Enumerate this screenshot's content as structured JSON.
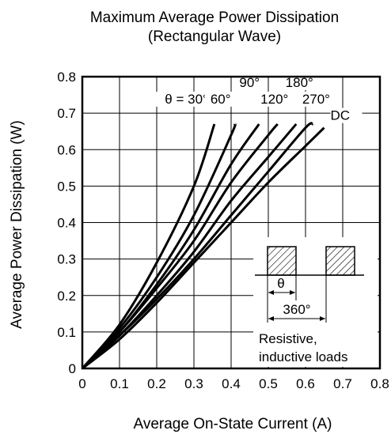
{
  "chart_data": {
    "type": "line",
    "title": "Maximum Average Power Dissipation",
    "subtitle": "(Rectangular Wave)",
    "xlabel": "Average On-State Current  (A)",
    "ylabel": "Average Power Dissipation  (W)",
    "xlim": [
      0,
      0.8
    ],
    "ylim": [
      0,
      0.8
    ],
    "grid": true,
    "xticks": [
      "0",
      "0.1",
      "0.2",
      "0.3",
      "0.4",
      "0.5",
      "0.6",
      "0.7",
      "0.8"
    ],
    "yticks": [
      "0",
      "0.1",
      "0.2",
      "0.3",
      "0.4",
      "0.5",
      "0.6",
      "0.7",
      "0.8"
    ],
    "series": [
      {
        "name": "θ = 30°",
        "x": [
          0,
          0.1,
          0.2,
          0.3,
          0.355
        ],
        "y": [
          0,
          0.12,
          0.29,
          0.5,
          0.67
        ]
      },
      {
        "name": "60°",
        "x": [
          0,
          0.1,
          0.2,
          0.3,
          0.4,
          0.41
        ],
        "y": [
          0,
          0.11,
          0.25,
          0.42,
          0.64,
          0.67
        ]
      },
      {
        "name": "90°",
        "x": [
          0,
          0.1,
          0.2,
          0.3,
          0.4,
          0.475
        ],
        "y": [
          0,
          0.1,
          0.23,
          0.38,
          0.56,
          0.67
        ]
      },
      {
        "name": "120°",
        "x": [
          0,
          0.1,
          0.2,
          0.3,
          0.4,
          0.5,
          0.525
        ],
        "y": [
          0,
          0.1,
          0.22,
          0.35,
          0.51,
          0.64,
          0.67
        ]
      },
      {
        "name": "180°",
        "x": [
          0,
          0.1,
          0.2,
          0.3,
          0.4,
          0.5,
          0.575
        ],
        "y": [
          0,
          0.09,
          0.2,
          0.32,
          0.46,
          0.58,
          0.67
        ]
      },
      {
        "name": "270°",
        "x": [
          0,
          0.1,
          0.2,
          0.3,
          0.4,
          0.5,
          0.6,
          0.62
        ],
        "y": [
          0,
          0.09,
          0.19,
          0.3,
          0.42,
          0.54,
          0.66,
          0.67
        ]
      },
      {
        "name": "DC",
        "x": [
          0,
          0.1,
          0.2,
          0.3,
          0.4,
          0.5,
          0.6,
          0.65
        ],
        "y": [
          0,
          0.08,
          0.18,
          0.29,
          0.4,
          0.51,
          0.61,
          0.66
        ]
      }
    ],
    "inset": {
      "theta_label": "θ",
      "period_label": "360°",
      "note_line1": "Resistive,",
      "note_line2": "inductive loads"
    }
  }
}
